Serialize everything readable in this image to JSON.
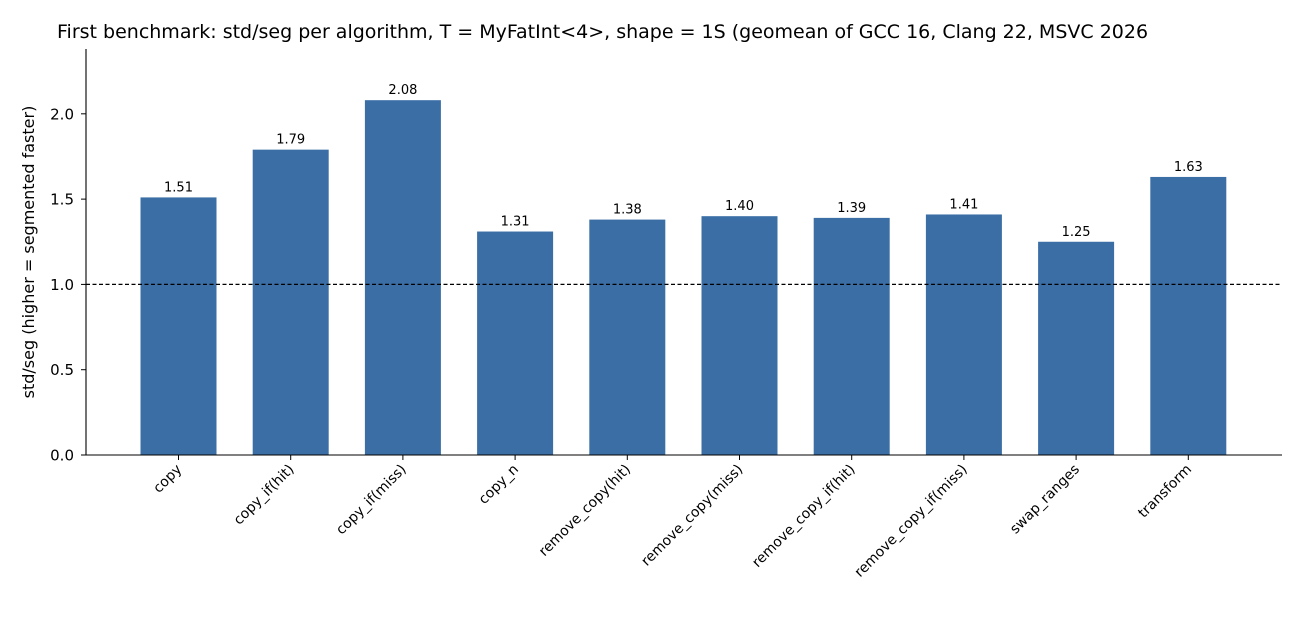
{
  "chart_data": {
    "type": "bar",
    "title": "First benchmark: std/seg per algorithm, T = MyFatInt<4>, shape = 1S (geomean of GCC 16, Clang 22, MSVC 2026",
    "xlabel": "",
    "ylabel": "std/seg  (higher = segmented faster)",
    "categories": [
      "copy",
      "copy_if(hit)",
      "copy_if(miss)",
      "copy_n",
      "remove_copy(hit)",
      "remove_copy(miss)",
      "remove_copy_if(hit)",
      "remove_copy_if(miss)",
      "swap_ranges",
      "transform"
    ],
    "values": [
      1.51,
      1.79,
      2.08,
      1.31,
      1.38,
      1.4,
      1.39,
      1.41,
      1.25,
      1.63
    ],
    "data_labels": [
      "1.51",
      "1.79",
      "2.08",
      "1.31",
      "1.38",
      "1.40",
      "1.39",
      "1.41",
      "1.25",
      "1.63"
    ],
    "ylim": [
      0,
      2.38
    ],
    "yticks": [
      0.0,
      0.5,
      1.0,
      1.5,
      2.0
    ],
    "ytick_labels": [
      "0.0",
      "0.5",
      "1.0",
      "1.5",
      "2.0"
    ],
    "reference_line": {
      "y": 1.0,
      "style": "dashed"
    },
    "bar_color": "#3b6ea5",
    "grid": false,
    "legend": "none"
  }
}
